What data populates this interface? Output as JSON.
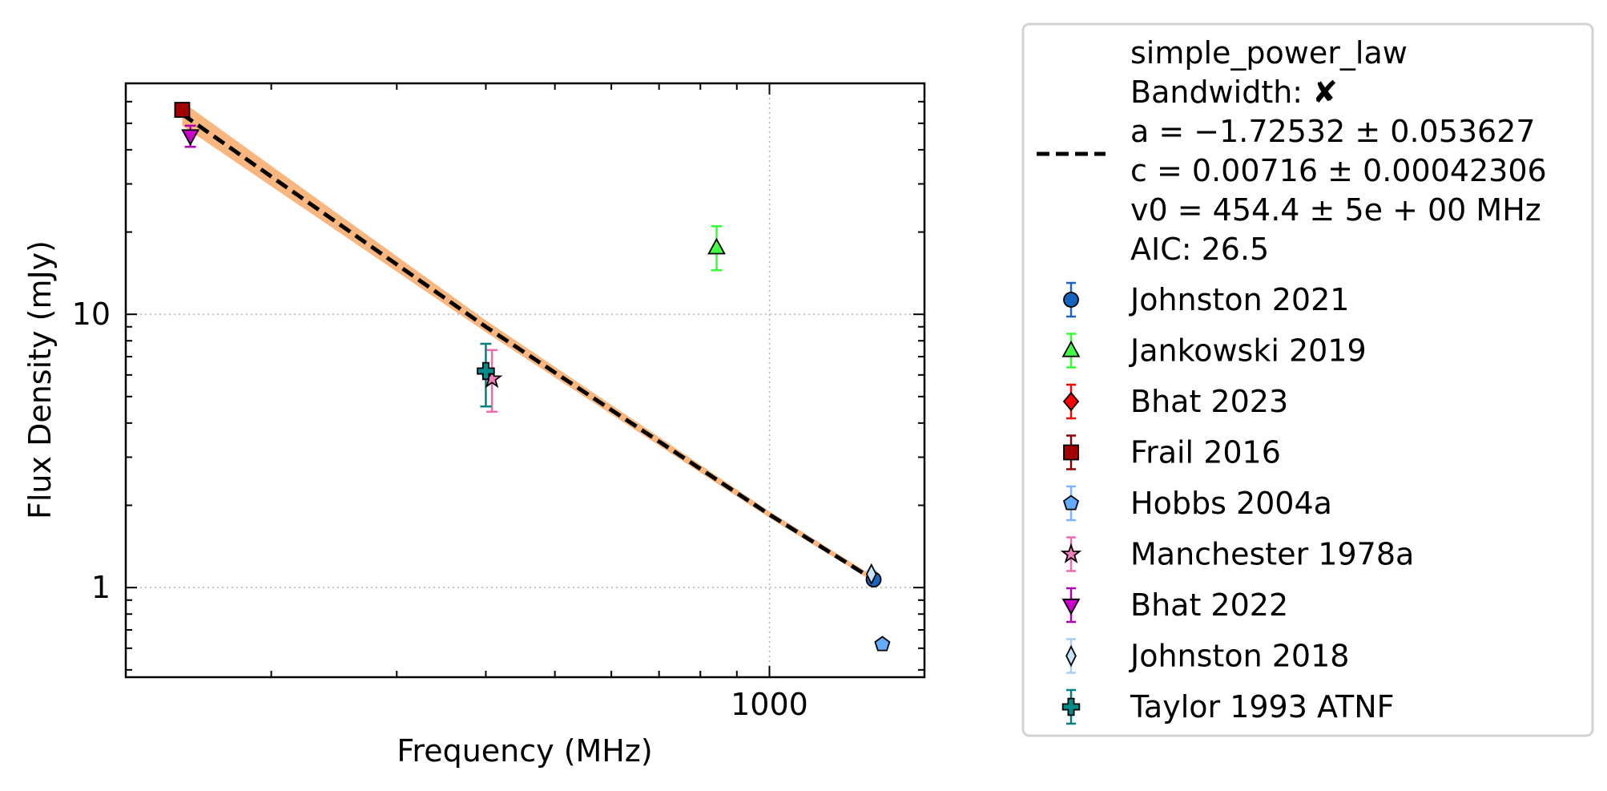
{
  "chart_data": {
    "type": "scatter",
    "title": "",
    "xlabel": "Frequency (MHz)",
    "ylabel": "Flux Density (mJy)",
    "xscale": "log",
    "yscale": "log",
    "xlim": [
      125,
      1650
    ],
    "ylim": [
      0.47,
      70
    ],
    "grid": true,
    "legend_position": "outside-right",
    "x_ticks": [
      {
        "value": 1000,
        "label": "1000"
      }
    ],
    "y_ticks": [
      {
        "value": 1,
        "label": "1"
      },
      {
        "value": 10,
        "label": "10"
      }
    ],
    "fit": {
      "name": "simple_power_law",
      "bandwidth_label": "Bandwidth: ✘",
      "a_label": "a = −1.72532 ± 0.053627",
      "c_label": "c = 0.00716 ± 0.00042306",
      "v0_label": "v0 = 454.4 ± 5e + 00 MHz",
      "aic_label": "AIC: 26.5",
      "x_range": [
        150,
        1400
      ],
      "points": [
        [
          150,
          54
        ],
        [
          400,
          9.0
        ],
        [
          1000,
          1.85
        ],
        [
          1400,
          1.07
        ]
      ],
      "band_lower": [
        [
          150,
          49
        ],
        [
          400,
          8.6
        ],
        [
          1000,
          1.8
        ],
        [
          1400,
          1.05
        ]
      ],
      "band_upper": [
        [
          150,
          60
        ],
        [
          400,
          9.5
        ],
        [
          1000,
          1.9
        ],
        [
          1400,
          1.1
        ]
      ],
      "line_color": "#000000",
      "band_color": "#f9b67e"
    },
    "series": [
      {
        "name": "Johnston 2021",
        "marker": "circle",
        "color": "#1565c0",
        "errcolor": "#1e63c9",
        "points": [
          {
            "x": 1400,
            "y": 1.07,
            "err": [
              0.02,
              0.02
            ]
          }
        ]
      },
      {
        "name": "Jankowski 2019",
        "marker": "triangle-up",
        "color": "#44ff44",
        "errcolor": "#33ff33",
        "points": [
          {
            "x": 843,
            "y": 17.5,
            "err": [
              3.0,
              3.5
            ]
          }
        ]
      },
      {
        "name": "Bhat 2023",
        "marker": "diamond",
        "color": "#ff0000",
        "errcolor": "#ff0000",
        "points": []
      },
      {
        "name": "Frail 2016",
        "marker": "square",
        "color": "#a50000",
        "errcolor": "#8b0000",
        "points": [
          {
            "x": 150,
            "y": 56,
            "err": [
              0,
              0
            ]
          }
        ]
      },
      {
        "name": "Hobbs 2004a",
        "marker": "pentagon",
        "color": "#64aaff",
        "errcolor": "#7ab4ff",
        "points": [
          {
            "x": 1440,
            "y": 0.62,
            "err": [
              0,
              0
            ]
          }
        ]
      },
      {
        "name": "Manchester 1978a",
        "marker": "star",
        "color": "#f77fbf",
        "errcolor": "#f06ab0",
        "points": [
          {
            "x": 408,
            "y": 5.8,
            "err": [
              1.4,
              1.6
            ]
          }
        ]
      },
      {
        "name": "Bhat 2022",
        "marker": "triangle-down",
        "color": "#cc00cc",
        "errcolor": "#b000b0",
        "points": [
          {
            "x": 154,
            "y": 45,
            "err": [
              4,
              4
            ]
          }
        ]
      },
      {
        "name": "Johnston 2018",
        "marker": "thin-diamond",
        "color": "#c7e2fb",
        "errcolor": "#a6cdf2",
        "points": [
          {
            "x": 1390,
            "y": 1.12,
            "err": [
              0.03,
              0.03
            ]
          }
        ]
      },
      {
        "name": "Taylor 1993 ATNF",
        "marker": "plus",
        "color": "#008b8b",
        "errcolor": "#008080",
        "points": [
          {
            "x": 400,
            "y": 6.2,
            "err": [
              1.6,
              1.6
            ]
          }
        ]
      }
    ]
  }
}
